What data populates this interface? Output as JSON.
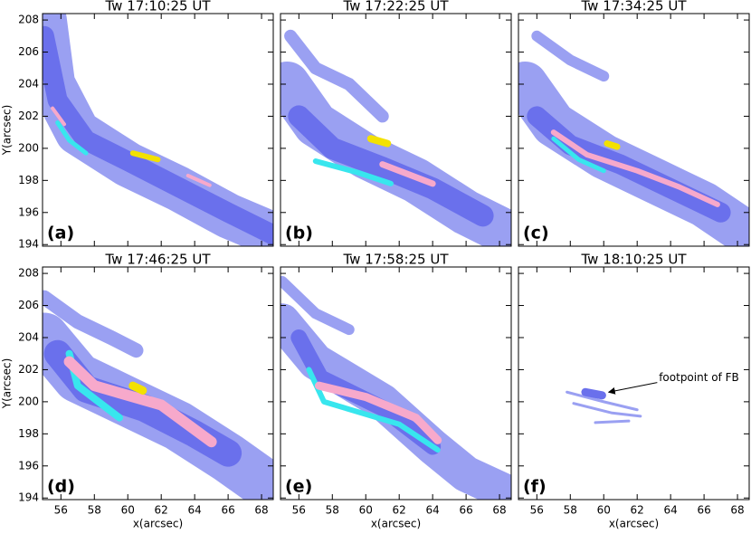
{
  "chart_data": [
    {
      "type": "image",
      "title": "Tw 17:10:25 UT",
      "label": "(a)",
      "ylabel": "Y(arcsec)",
      "xlim": [
        54.9,
        68.7
      ],
      "ylim": [
        193.9,
        208.4
      ],
      "xticks": [
        56,
        58,
        60,
        62,
        64,
        66,
        68
      ],
      "yticks": [
        194,
        196,
        198,
        200,
        202,
        204,
        206,
        208
      ]
    },
    {
      "type": "image",
      "title": "Tw 17:22:25 UT",
      "label": "(b)",
      "xlim": [
        54.9,
        68.7
      ],
      "ylim": [
        193.9,
        208.4
      ],
      "xticks": [
        56,
        58,
        60,
        62,
        64,
        66,
        68
      ],
      "yticks": [
        194,
        196,
        198,
        200,
        202,
        204,
        206,
        208
      ]
    },
    {
      "type": "image",
      "title": "Tw 17:34:25 UT",
      "label": "(c)",
      "xlim": [
        54.9,
        68.7
      ],
      "ylim": [
        193.9,
        208.4
      ],
      "xticks": [
        56,
        58,
        60,
        62,
        64,
        66,
        68
      ],
      "yticks": [
        194,
        196,
        198,
        200,
        202,
        204,
        206,
        208
      ]
    },
    {
      "type": "image",
      "title": "Tw 17:46:25 UT",
      "label": "(d)",
      "ylabel": "Y(arcsec)",
      "xlabel": "x(arcsec)",
      "xlim": [
        54.9,
        68.7
      ],
      "ylim": [
        193.9,
        208.4
      ],
      "xticks": [
        56,
        58,
        60,
        62,
        64,
        66,
        68
      ],
      "yticks": [
        194,
        196,
        198,
        200,
        202,
        204,
        206,
        208
      ]
    },
    {
      "type": "image",
      "title": "Tw 17:58:25 UT",
      "label": "(e)",
      "xlabel": "x(arcsec)",
      "xlim": [
        54.9,
        68.7
      ],
      "ylim": [
        193.9,
        208.4
      ],
      "xticks": [
        56,
        58,
        60,
        62,
        64,
        66,
        68
      ],
      "yticks": [
        194,
        196,
        198,
        200,
        202,
        204,
        206,
        208
      ]
    },
    {
      "type": "image",
      "title": "Tw 18:10:25 UT",
      "label": "(f)",
      "xlabel": "x(arcsec)",
      "annotation": "footpoint of FB",
      "xlim": [
        54.9,
        68.7
      ],
      "ylim": [
        193.9,
        208.4
      ],
      "xticks": [
        56,
        58,
        60,
        62,
        64,
        66,
        68
      ],
      "yticks": [
        194,
        196,
        198,
        200,
        202,
        204,
        206,
        208
      ]
    }
  ]
}
